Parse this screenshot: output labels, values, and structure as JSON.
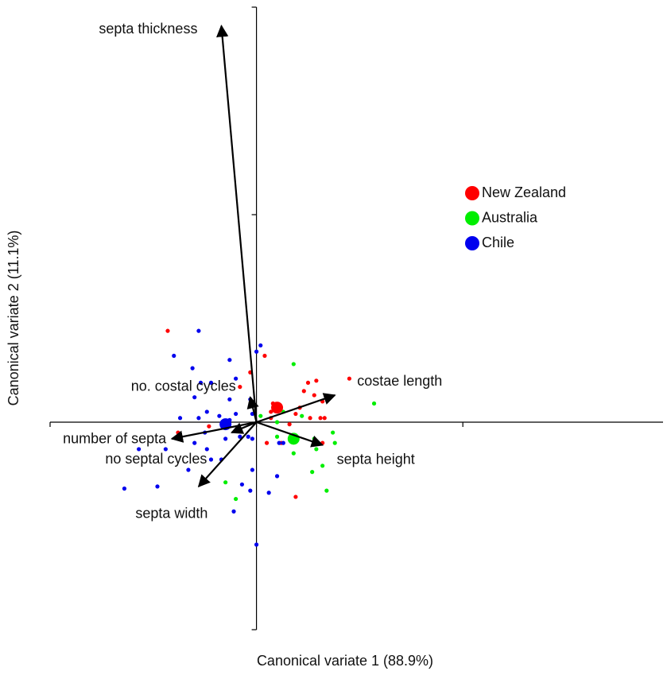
{
  "chart_data": {
    "type": "scatter",
    "x_label": "Canonical variate 1 (88.9%)",
    "y_label": "Canonical variate 2 (11.1%)",
    "xlim": [
      -1,
      1.97
    ],
    "ylim": [
      -1,
      2
    ],
    "xticks": [
      -1,
      0,
      1
    ],
    "yticks": [
      -1,
      0,
      1,
      2
    ],
    "legend_position": "upper right",
    "series": [
      {
        "name": "New Zealand",
        "color": "#ff0000",
        "x": [
          -0.43,
          0.04,
          0.29,
          0.25,
          0.23,
          0.32,
          0.21,
          0.19,
          0.07,
          0.07,
          0.16,
          0.26,
          0.31,
          0.32,
          0.05,
          0.12,
          0.19,
          0.45,
          -0.23,
          -0.38,
          -0.08,
          -0.03,
          0.28,
          0.33,
          0.08
        ],
        "y": [
          0.44,
          0.32,
          0.2,
          0.19,
          0.15,
          0.1,
          0.07,
          0.04,
          0.05,
          0.02,
          -0.01,
          0.02,
          0.02,
          -0.1,
          -0.1,
          -0.1,
          -0.36,
          0.21,
          -0.02,
          -0.05,
          0.17,
          0.24,
          0.13,
          0.02,
          0.09
        ],
        "centroid": {
          "x": 0.1,
          "y": 0.07
        }
      },
      {
        "name": "Australia",
        "color": "#00ee00",
        "x": [
          0.18,
          0.13,
          0.1,
          0.22,
          0.28,
          0.37,
          0.38,
          0.29,
          0.18,
          0.27,
          0.34,
          -0.15,
          -0.1,
          0.57,
          0.02,
          0.1,
          0.32
        ],
        "y": [
          0.28,
          0.05,
          0.0,
          0.03,
          -0.08,
          -0.05,
          -0.1,
          -0.13,
          -0.15,
          -0.24,
          -0.33,
          -0.29,
          -0.37,
          0.09,
          0.03,
          -0.07,
          -0.21
        ],
        "centroid": {
          "x": 0.18,
          "y": -0.08
        }
      },
      {
        "name": "Chile",
        "color": "#0000ee",
        "x": [
          -0.28,
          -0.4,
          -0.31,
          -0.27,
          -0.13,
          -0.22,
          -0.1,
          -0.13,
          -0.3,
          -0.28,
          -0.37,
          -0.24,
          -0.18,
          -0.13,
          -0.1,
          0.02,
          0.0,
          -0.03,
          -0.02,
          -0.08,
          -0.04,
          -0.02,
          -0.22,
          -0.17,
          -0.24,
          -0.15,
          -0.57,
          -0.44,
          -0.64,
          -0.48,
          -0.33,
          -0.02,
          -0.07,
          -0.11,
          0.0,
          -0.03,
          0.1,
          0.06,
          0.11,
          0.13,
          -0.25,
          -0.3
        ],
        "y": [
          0.44,
          0.32,
          0.26,
          0.19,
          0.3,
          0.19,
          0.21,
          0.11,
          0.12,
          0.02,
          0.02,
          0.05,
          0.03,
          0.01,
          0.04,
          0.37,
          0.34,
          0.11,
          0.04,
          -0.07,
          -0.07,
          -0.08,
          -0.18,
          -0.18,
          -0.13,
          -0.08,
          -0.13,
          -0.13,
          -0.32,
          -0.31,
          -0.23,
          -0.23,
          -0.3,
          -0.43,
          -0.59,
          -0.33,
          -0.26,
          -0.34,
          -0.1,
          -0.1,
          -0.05,
          -0.1
        ],
        "centroid": {
          "x": -0.15,
          "y": -0.01
        }
      }
    ],
    "loadings": [
      {
        "label": "septa thickness",
        "x": -0.17,
        "y": 1.91
      },
      {
        "label": "costae length",
        "x": 0.38,
        "y": 0.13
      },
      {
        "label": "septa height",
        "x": 0.32,
        "y": -0.11
      },
      {
        "label": "septa width",
        "x": -0.28,
        "y": -0.31
      },
      {
        "label": "number of septa",
        "x": -0.41,
        "y": -0.08
      },
      {
        "label": "no septal cycles",
        "x": -0.12,
        "y": -0.05
      },
      {
        "label": "no. costal cycles",
        "x": -0.03,
        "y": 0.12
      }
    ]
  }
}
